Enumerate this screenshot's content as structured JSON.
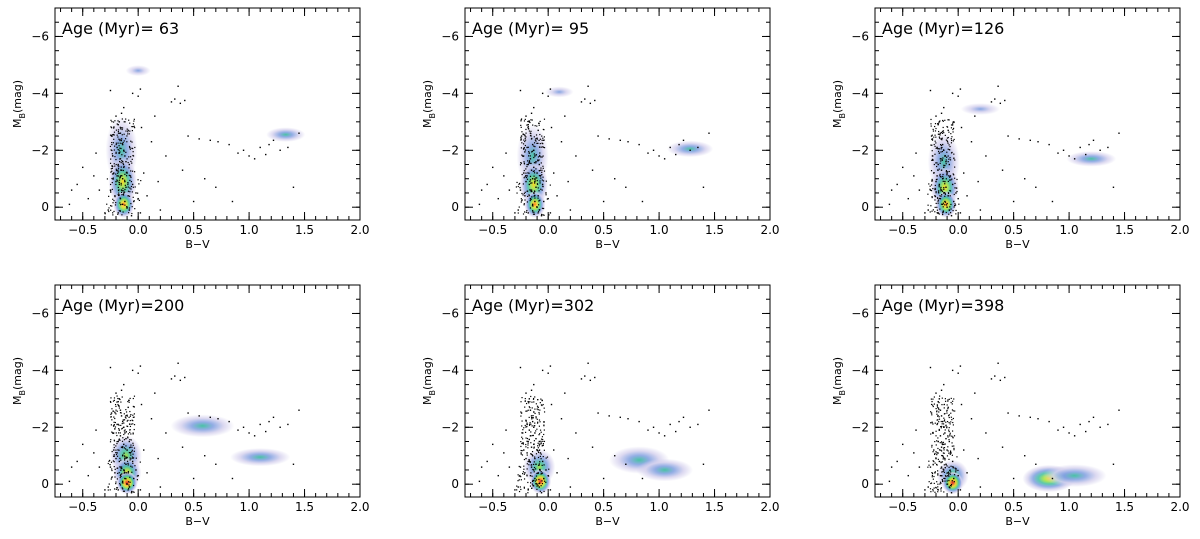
{
  "chart_data": [
    {
      "type": "scatter",
      "title": "Age (Myr)= 63",
      "xlabel": "B−V",
      "ylabel": "M",
      "ylabel_sub": "B",
      "ylabel_unit": "(mag)",
      "xlim": [
        -0.75,
        2.0
      ],
      "ylim": [
        0.45,
        -7.0
      ],
      "xticks": [
        -0.5,
        0.0,
        0.5,
        1.0,
        1.5,
        2.0
      ],
      "xtick_labels": [
        "−0.5",
        "0.0",
        "0.5",
        "1.0",
        "1.5",
        "2.0"
      ],
      "yticks": [
        -6,
        -4,
        -2,
        0
      ],
      "ytick_labels": [
        "−6",
        "−4",
        "−2",
        "0"
      ],
      "density_blobs": [
        {
          "x": 0.0,
          "y": -4.8,
          "sx": 0.07,
          "sy": 0.12,
          "level": 0.15
        },
        {
          "x": 1.33,
          "y": -2.55,
          "sx": 0.11,
          "sy": 0.16,
          "level": 0.25
        },
        {
          "x": -0.15,
          "y": -2.0,
          "sx": 0.09,
          "sy": 0.75,
          "level": 0.35
        },
        {
          "x": -0.14,
          "y": -0.9,
          "sx": 0.08,
          "sy": 0.55,
          "level": 0.6
        },
        {
          "x": -0.13,
          "y": -0.1,
          "sx": 0.06,
          "sy": 0.3,
          "level": 0.9
        }
      ]
    },
    {
      "type": "scatter",
      "title": "Age (Myr)= 95",
      "xlabel": "B−V",
      "ylabel": "M",
      "ylabel_sub": "B",
      "ylabel_unit": "(mag)",
      "xlim": [
        -0.75,
        2.0
      ],
      "ylim": [
        0.45,
        -7.0
      ],
      "xticks": [
        -0.5,
        0.0,
        0.5,
        1.0,
        1.5,
        2.0
      ],
      "xtick_labels": [
        "−0.5",
        "0.0",
        "0.5",
        "1.0",
        "1.5",
        "2.0"
      ],
      "yticks": [
        -6,
        -4,
        -2,
        0
      ],
      "ytick_labels": [
        "−6",
        "−4",
        "−2",
        "0"
      ],
      "density_blobs": [
        {
          "x": 0.1,
          "y": -4.05,
          "sx": 0.08,
          "sy": 0.12,
          "level": 0.15
        },
        {
          "x": 1.28,
          "y": -2.05,
          "sx": 0.13,
          "sy": 0.18,
          "level": 0.25
        },
        {
          "x": -0.14,
          "y": -1.8,
          "sx": 0.09,
          "sy": 0.7,
          "level": 0.35
        },
        {
          "x": -0.13,
          "y": -0.8,
          "sx": 0.08,
          "sy": 0.5,
          "level": 0.6
        },
        {
          "x": -0.12,
          "y": -0.1,
          "sx": 0.06,
          "sy": 0.3,
          "level": 0.9
        }
      ]
    },
    {
      "type": "scatter",
      "title": "Age (Myr)=126",
      "xlabel": "B−V",
      "ylabel": "M",
      "ylabel_sub": "B",
      "ylabel_unit": "(mag)",
      "xlim": [
        -0.75,
        2.0
      ],
      "ylim": [
        0.45,
        -7.0
      ],
      "xticks": [
        -0.5,
        0.0,
        0.5,
        1.0,
        1.5,
        2.0
      ],
      "xtick_labels": [
        "−0.5",
        "0.0",
        "0.5",
        "1.0",
        "1.5",
        "2.0"
      ],
      "yticks": [
        -6,
        -4,
        -2,
        0
      ],
      "ytick_labels": [
        "−6",
        "−4",
        "−2",
        "0"
      ],
      "density_blobs": [
        {
          "x": 0.2,
          "y": -3.45,
          "sx": 0.11,
          "sy": 0.13,
          "level": 0.2
        },
        {
          "x": 1.2,
          "y": -1.7,
          "sx": 0.14,
          "sy": 0.17,
          "level": 0.25
        },
        {
          "x": -0.13,
          "y": -1.6,
          "sx": 0.09,
          "sy": 0.65,
          "level": 0.35
        },
        {
          "x": -0.12,
          "y": -0.7,
          "sx": 0.08,
          "sy": 0.45,
          "level": 0.6
        },
        {
          "x": -0.11,
          "y": -0.1,
          "sx": 0.06,
          "sy": 0.3,
          "level": 0.9
        }
      ]
    },
    {
      "type": "scatter",
      "title": "Age (Myr)=200",
      "xlabel": "B−V",
      "ylabel": "M",
      "ylabel_sub": "B",
      "ylabel_unit": "(mag)",
      "xlim": [
        -0.75,
        2.0
      ],
      "ylim": [
        0.45,
        -7.0
      ],
      "xticks": [
        -0.5,
        0.0,
        0.5,
        1.0,
        1.5,
        2.0
      ],
      "xtick_labels": [
        "−0.5",
        "0.0",
        "0.5",
        "1.0",
        "1.5",
        "2.0"
      ],
      "yticks": [
        -6,
        -4,
        -2,
        0
      ],
      "ytick_labels": [
        "−6",
        "−4",
        "−2",
        "0"
      ],
      "density_blobs": [
        {
          "x": 0.58,
          "y": -2.05,
          "sx": 0.18,
          "sy": 0.25,
          "level": 0.25
        },
        {
          "x": 1.1,
          "y": -0.95,
          "sx": 0.17,
          "sy": 0.2,
          "level": 0.25
        },
        {
          "x": -0.11,
          "y": -1.0,
          "sx": 0.09,
          "sy": 0.45,
          "level": 0.45
        },
        {
          "x": -0.1,
          "y": -0.4,
          "sx": 0.08,
          "sy": 0.35,
          "level": 0.7
        },
        {
          "x": -0.1,
          "y": -0.05,
          "sx": 0.06,
          "sy": 0.25,
          "level": 0.95
        }
      ]
    },
    {
      "type": "scatter",
      "title": "Age (Myr)=302",
      "xlabel": "B−V",
      "ylabel": "M",
      "ylabel_sub": "B",
      "ylabel_unit": "(mag)",
      "xlim": [
        -0.75,
        2.0
      ],
      "ylim": [
        0.45,
        -7.0
      ],
      "xticks": [
        -0.5,
        0.0,
        0.5,
        1.0,
        1.5,
        2.0
      ],
      "xtick_labels": [
        "−0.5",
        "0.0",
        "0.5",
        "1.0",
        "1.5",
        "2.0"
      ],
      "yticks": [
        -6,
        -4,
        -2,
        0
      ],
      "ytick_labels": [
        "−6",
        "−4",
        "−2",
        "0"
      ],
      "density_blobs": [
        {
          "x": 0.82,
          "y": -0.85,
          "sx": 0.17,
          "sy": 0.3,
          "level": 0.4
        },
        {
          "x": 1.05,
          "y": -0.5,
          "sx": 0.16,
          "sy": 0.25,
          "level": 0.25
        },
        {
          "x": -0.08,
          "y": -0.6,
          "sx": 0.09,
          "sy": 0.4,
          "level": 0.5
        },
        {
          "x": -0.07,
          "y": -0.1,
          "sx": 0.06,
          "sy": 0.28,
          "level": 0.95
        }
      ]
    },
    {
      "type": "scatter",
      "title": "Age (Myr)=398",
      "xlabel": "B−V",
      "ylabel": "M",
      "ylabel_sub": "B",
      "ylabel_unit": "(mag)",
      "xlim": [
        -0.75,
        2.0
      ],
      "ylim": [
        0.45,
        -7.0
      ],
      "xticks": [
        -0.5,
        0.0,
        0.5,
        1.0,
        1.5,
        2.0
      ],
      "xtick_labels": [
        "−0.5",
        "0.0",
        "0.5",
        "1.0",
        "1.5",
        "2.0"
      ],
      "yticks": [
        -6,
        -4,
        -2,
        0
      ],
      "ytick_labels": [
        "−6",
        "−4",
        "−2",
        "0"
      ],
      "density_blobs": [
        {
          "x": 0.82,
          "y": -0.2,
          "sx": 0.15,
          "sy": 0.3,
          "level": 0.6
        },
        {
          "x": 1.05,
          "y": -0.3,
          "sx": 0.18,
          "sy": 0.25,
          "level": 0.25
        },
        {
          "x": -0.05,
          "y": -0.3,
          "sx": 0.09,
          "sy": 0.35,
          "level": 0.55
        },
        {
          "x": -0.05,
          "y": -0.05,
          "sx": 0.06,
          "sy": 0.25,
          "level": 0.95
        }
      ]
    }
  ],
  "colors": {
    "points": "#000000",
    "axis": "#000000",
    "density_low": "#d6d2ee",
    "density_mid1": "#7f9fe0",
    "density_mid2": "#3fbf9f",
    "density_mid3": "#9fe23a",
    "density_high1": "#ffd21a",
    "density_high2": "#ff6a1a",
    "density_peak": "#d81414"
  },
  "stars": {
    "cluster_main_sequence": [
      [
        -0.2,
        -3.2
      ],
      [
        -0.18,
        -2.9
      ],
      [
        -0.16,
        -2.6
      ],
      [
        -0.15,
        -2.4
      ],
      [
        -0.14,
        -2.2
      ],
      [
        -0.19,
        -2.1
      ],
      [
        -0.13,
        -2.0
      ],
      [
        -0.17,
        -1.9
      ],
      [
        -0.12,
        -1.8
      ],
      [
        -0.16,
        -1.7
      ],
      [
        -0.11,
        -1.6
      ],
      [
        -0.18,
        -1.5
      ],
      [
        -0.13,
        -1.4
      ],
      [
        -0.15,
        -1.3
      ],
      [
        -0.1,
        -1.2
      ],
      [
        -0.19,
        -1.1
      ],
      [
        -0.14,
        -1.0
      ],
      [
        -0.12,
        -0.9
      ],
      [
        -0.17,
        -0.8
      ],
      [
        -0.11,
        -0.7
      ],
      [
        -0.15,
        -0.6
      ],
      [
        -0.13,
        -0.5
      ],
      [
        -0.09,
        -0.4
      ],
      [
        -0.16,
        -0.3
      ],
      [
        -0.12,
        -0.2
      ],
      [
        -0.14,
        -0.1
      ],
      [
        -0.1,
        0.0
      ],
      [
        -0.08,
        0.1
      ],
      [
        -0.18,
        0.2
      ],
      [
        -0.06,
        0.3
      ],
      [
        -0.22,
        -1.2
      ],
      [
        -0.21,
        -0.4
      ],
      [
        -0.05,
        -0.8
      ],
      [
        -0.04,
        -0.2
      ],
      [
        -0.24,
        -2.5
      ],
      [
        -0.09,
        -2.7
      ],
      [
        -0.17,
        -3.0
      ],
      [
        -0.15,
        -3.3
      ],
      [
        -0.13,
        -3.5
      ],
      [
        -0.2,
        -0.9
      ],
      [
        -0.08,
        -1.5
      ],
      [
        -0.07,
        -1.1
      ],
      [
        -0.23,
        -1.8
      ],
      [
        -0.25,
        -0.6
      ],
      [
        -0.02,
        -0.5
      ],
      [
        0.0,
        -0.3
      ],
      [
        -0.27,
        0.1
      ],
      [
        0.02,
        0.2
      ]
    ],
    "field_and_giants": [
      [
        -0.62,
        -0.1
      ],
      [
        -0.55,
        -0.8
      ],
      [
        -0.5,
        -1.4
      ],
      [
        -0.45,
        -0.3
      ],
      [
        -0.4,
        -1.1
      ],
      [
        -0.35,
        -0.6
      ],
      [
        -0.3,
        0.2
      ],
      [
        -0.25,
        -4.1
      ],
      [
        -0.05,
        -4.0
      ],
      [
        0.0,
        -3.9
      ],
      [
        0.02,
        -4.15
      ],
      [
        0.05,
        -1.2
      ],
      [
        0.08,
        -0.4
      ],
      [
        0.12,
        -2.3
      ],
      [
        0.18,
        -0.9
      ],
      [
        0.25,
        -1.8
      ],
      [
        0.3,
        -3.7
      ],
      [
        0.33,
        -3.8
      ],
      [
        0.36,
        -4.25
      ],
      [
        0.38,
        -3.65
      ],
      [
        0.42,
        -3.75
      ],
      [
        0.45,
        -2.5
      ],
      [
        0.55,
        -2.4
      ],
      [
        0.6,
        -1.0
      ],
      [
        0.65,
        -2.35
      ],
      [
        0.72,
        -2.3
      ],
      [
        0.82,
        -2.2
      ],
      [
        0.9,
        -1.9
      ],
      [
        0.95,
        -2.0
      ],
      [
        1.0,
        -1.8
      ],
      [
        1.05,
        -1.7
      ],
      [
        1.1,
        -2.1
      ],
      [
        1.15,
        -1.85
      ],
      [
        1.18,
        -2.2
      ],
      [
        1.22,
        -2.35
      ],
      [
        1.28,
        -2.0
      ],
      [
        1.35,
        -2.1
      ],
      [
        1.4,
        -0.7
      ],
      [
        1.45,
        -2.6
      ],
      [
        0.85,
        -0.2
      ],
      [
        0.2,
        0.1
      ],
      [
        0.5,
        -0.2
      ],
      [
        -0.6,
        -0.6
      ],
      [
        -0.38,
        -1.9
      ],
      [
        0.15,
        -3.2
      ],
      [
        0.03,
        -2.8
      ],
      [
        0.4,
        -1.3
      ],
      [
        0.7,
        -0.7
      ]
    ]
  }
}
